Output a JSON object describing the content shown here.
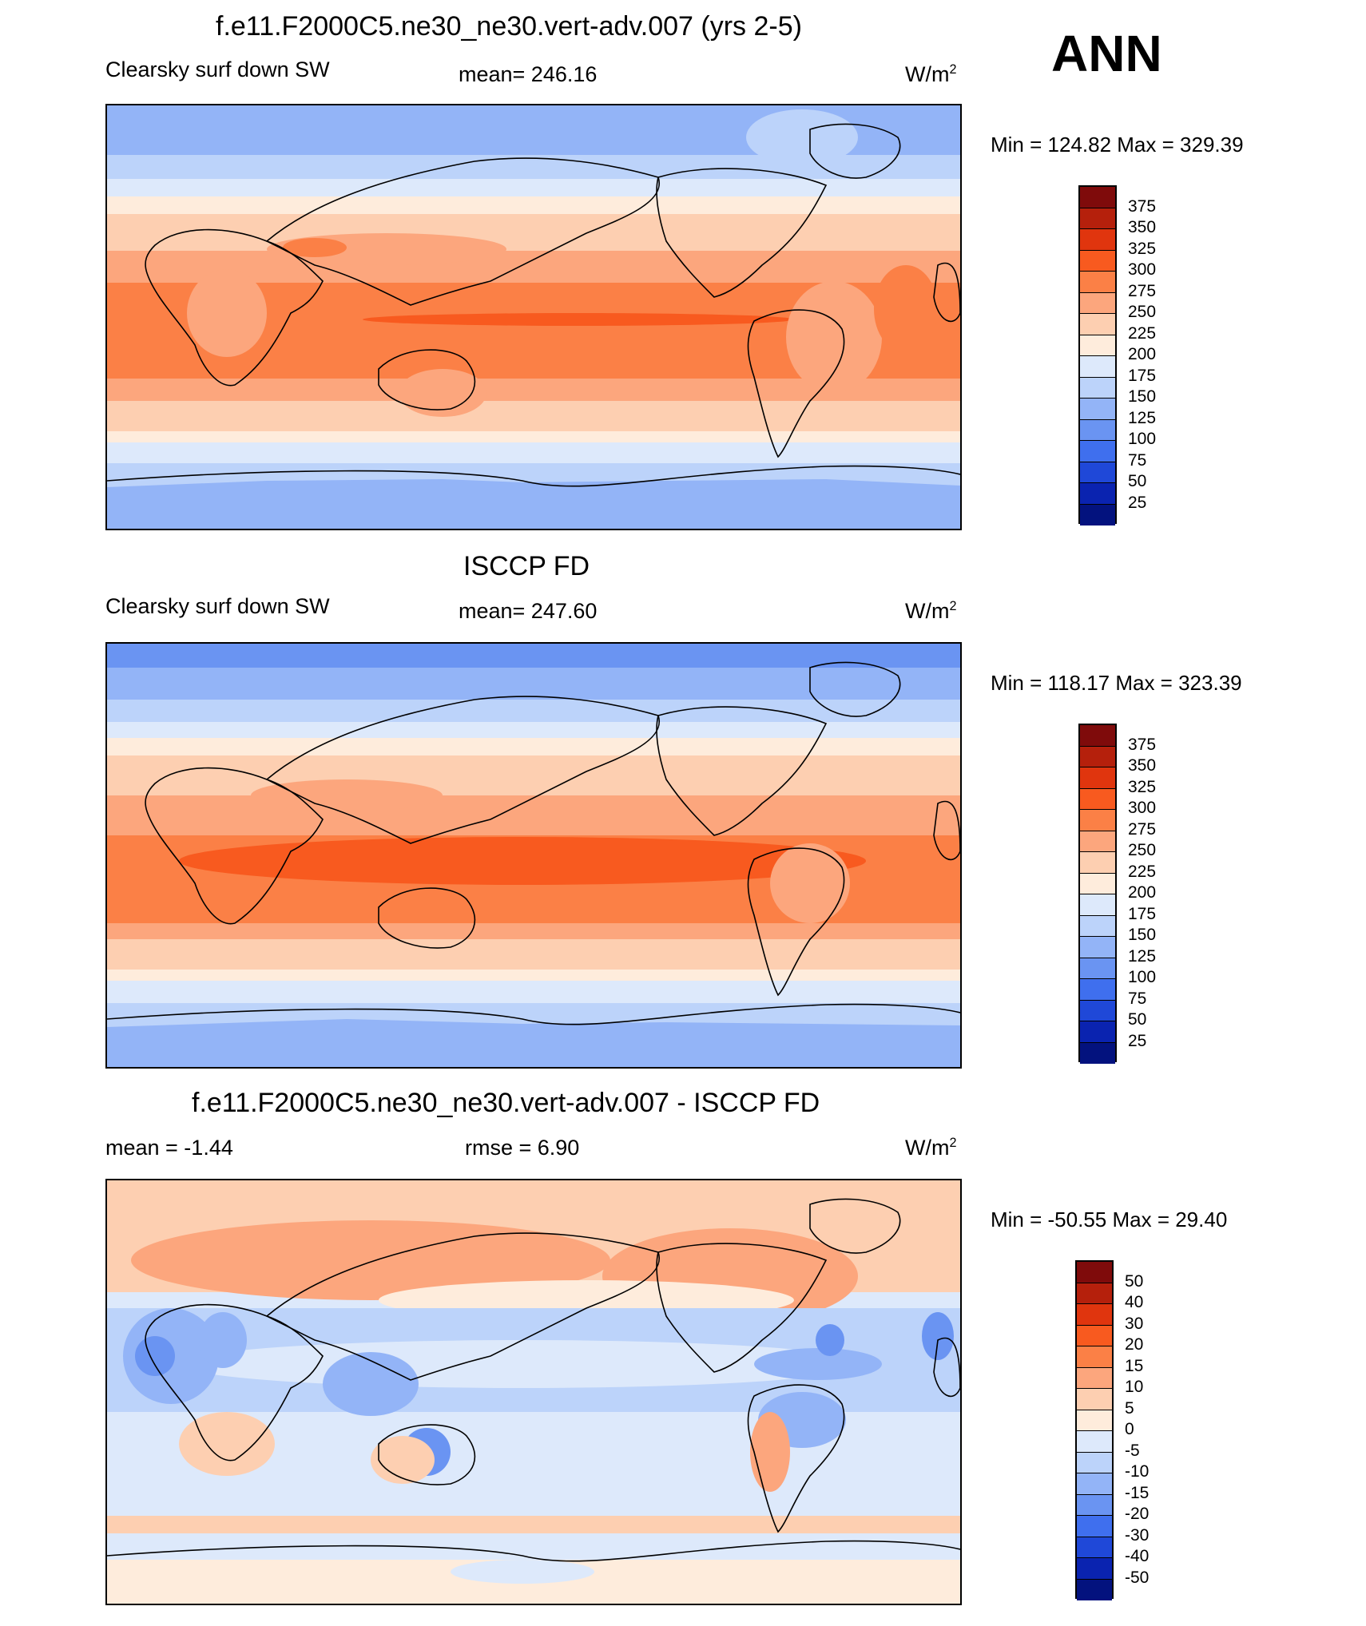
{
  "season": "ANN",
  "units_base": "W/m",
  "units_exp": "2",
  "panels": [
    {
      "id": "model",
      "title": "f.e11.F2000C5.ne30_ne30.vert-adv.007 (yrs 2-5)",
      "left_label": "Clearsky surf down SW",
      "center_label": "mean= 246.16",
      "minmax": "Min = 124.82 Max = 329.39",
      "levels": [
        "375",
        "350",
        "325",
        "300",
        "275",
        "250",
        "225",
        "200",
        "175",
        "150",
        "125",
        "100",
        "75",
        "50",
        "25"
      ],
      "colors": [
        "#7f0b0b",
        "#b5200c",
        "#e0350e",
        "#f85a1f",
        "#fb8046",
        "#fca67d",
        "#fdcfb1",
        "#feecdc",
        "#dde9fb",
        "#bcd3fa",
        "#93b4f7",
        "#6a94f2",
        "#3f6fee",
        "#1f48d8",
        "#0a23b0",
        "#03127e"
      ]
    },
    {
      "id": "obs",
      "title": "ISCCP FD",
      "left_label": "Clearsky surf down SW",
      "center_label": "mean= 247.60",
      "minmax": "Min = 118.17 Max = 323.39",
      "levels": [
        "375",
        "350",
        "325",
        "300",
        "275",
        "250",
        "225",
        "200",
        "175",
        "150",
        "125",
        "100",
        "75",
        "50",
        "25"
      ],
      "colors": [
        "#7f0b0b",
        "#b5200c",
        "#e0350e",
        "#f85a1f",
        "#fb8046",
        "#fca67d",
        "#fdcfb1",
        "#feecdc",
        "#dde9fb",
        "#bcd3fa",
        "#93b4f7",
        "#6a94f2",
        "#3f6fee",
        "#1f48d8",
        "#0a23b0",
        "#03127e"
      ]
    },
    {
      "id": "diff",
      "title": "f.e11.F2000C5.ne30_ne30.vert-adv.007 - ISCCP FD",
      "left_label": "mean =  -1.44",
      "center_label": "rmse =   6.90",
      "minmax": "Min = -50.55 Max =  29.40",
      "levels": [
        "50",
        "40",
        "30",
        "20",
        "15",
        "10",
        "5",
        "0",
        "-5",
        "-10",
        "-15",
        "-20",
        "-30",
        "-40",
        "-50"
      ],
      "colors": [
        "#7f0b0b",
        "#b5200c",
        "#e0350e",
        "#f85a1f",
        "#fb8046",
        "#fca67d",
        "#fdcfb1",
        "#feecdc",
        "#dde9fb",
        "#bcd3fa",
        "#93b4f7",
        "#6a94f2",
        "#3f6fee",
        "#1f48d8",
        "#0a23b0",
        "#03127e"
      ]
    }
  ]
}
